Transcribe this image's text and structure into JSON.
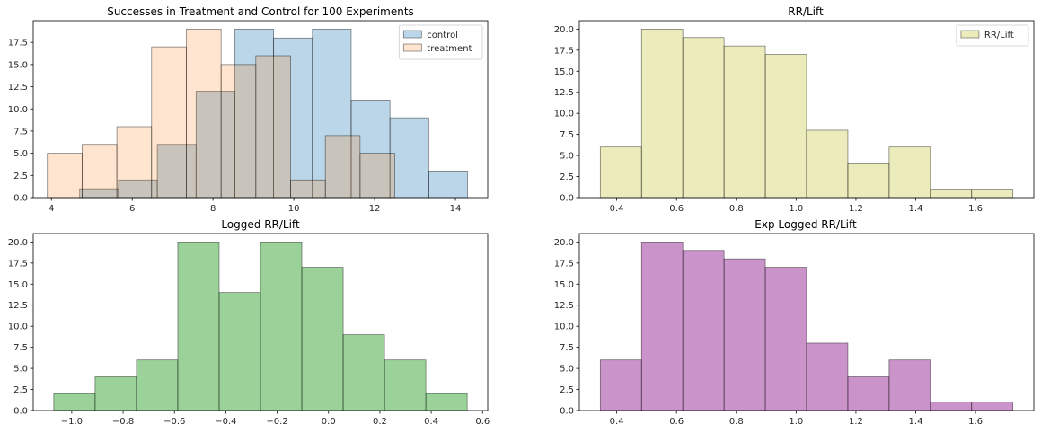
{
  "chart_data": [
    {
      "type": "bar",
      "title": "Successes in Treatment and Control for 100 Experiments",
      "xlim": [
        3.55,
        14.8
      ],
      "ylim": [
        0,
        19.95
      ],
      "xticks": [
        4,
        6,
        8,
        10,
        12,
        14
      ],
      "xtick_labels": [
        "4",
        "6",
        "8",
        "10",
        "12",
        "14"
      ],
      "yticks": [
        0,
        2.5,
        5,
        7.5,
        10,
        12.5,
        15,
        17.5
      ],
      "ytick_labels": [
        "0.0",
        "2.5",
        "5.0",
        "7.5",
        "10.0",
        "12.5",
        "15.0",
        "17.5"
      ],
      "legend_position": "top-right",
      "series": [
        {
          "name": "control",
          "color": "#1f77b4",
          "alpha": 0.3,
          "edges": [
            4.7,
            5.66,
            6.62,
            7.58,
            8.54,
            9.5,
            10.46,
            11.42,
            12.38,
            13.34,
            14.3
          ],
          "values": [
            1,
            2,
            6,
            12,
            19,
            18,
            19,
            11,
            9,
            3
          ]
        },
        {
          "name": "treatment",
          "color": "#ff7f0e",
          "alpha": 0.2,
          "edges": [
            3.9,
            4.76,
            5.62,
            6.48,
            7.34,
            8.2,
            9.06,
            9.92,
            10.78,
            11.64,
            12.5
          ],
          "values": [
            5,
            6,
            8,
            17,
            19,
            15,
            16,
            2,
            7,
            5
          ]
        }
      ]
    },
    {
      "type": "bar",
      "title": "RR/Lift",
      "xlim": [
        0.275,
        1.795
      ],
      "ylim": [
        0,
        21
      ],
      "xticks": [
        0.4,
        0.6,
        0.8,
        1.0,
        1.2,
        1.4,
        1.6
      ],
      "xtick_labels": [
        "0.4",
        "0.6",
        "0.8",
        "1.0",
        "1.2",
        "1.4",
        "1.6"
      ],
      "yticks": [
        0,
        2.5,
        5,
        7.5,
        10,
        12.5,
        15,
        17.5,
        20
      ],
      "ytick_labels": [
        "0.0",
        "2.5",
        "5.0",
        "7.5",
        "10.0",
        "12.5",
        "15.0",
        "17.5",
        "20.0"
      ],
      "legend_position": "top-right",
      "series": [
        {
          "name": "RR/Lift",
          "color": "#bcbd22",
          "alpha": 0.3,
          "edges": [
            0.345,
            0.483,
            0.621,
            0.759,
            0.897,
            1.035,
            1.173,
            1.311,
            1.449,
            1.587,
            1.725
          ],
          "values": [
            6,
            20,
            19,
            18,
            17,
            8,
            4,
            6,
            1,
            1
          ]
        }
      ]
    },
    {
      "type": "bar",
      "title": "Logged RR/Lift",
      "xlim": [
        -1.15,
        0.62
      ],
      "ylim": [
        0,
        21
      ],
      "xticks": [
        -1.0,
        -0.8,
        -0.6,
        -0.4,
        -0.2,
        0.0,
        0.2,
        0.4,
        0.6
      ],
      "xtick_labels": [
        "−1.0",
        "−0.8",
        "−0.6",
        "−0.4",
        "−0.2",
        "0.0",
        "0.2",
        "0.4",
        "0.6"
      ],
      "yticks": [
        0,
        2.5,
        5,
        7.5,
        10,
        12.5,
        15,
        17.5,
        20
      ],
      "ytick_labels": [
        "0.0",
        "2.5",
        "5.0",
        "7.5",
        "10.0",
        "12.5",
        "15.0",
        "17.5",
        "20.0"
      ],
      "series": [
        {
          "color": "#2ca02c",
          "alpha": 0.48,
          "edges": [
            -1.07,
            -0.909,
            -0.748,
            -0.587,
            -0.426,
            -0.265,
            -0.104,
            0.057,
            0.218,
            0.379,
            0.54
          ],
          "values": [
            2,
            4,
            6,
            20,
            14,
            20,
            17,
            9,
            6,
            2
          ]
        }
      ]
    },
    {
      "type": "bar",
      "title": "Exp Logged RR/Lift",
      "xlim": [
        0.275,
        1.795
      ],
      "ylim": [
        0,
        21
      ],
      "xticks": [
        0.4,
        0.6,
        0.8,
        1.0,
        1.2,
        1.4,
        1.6
      ],
      "xtick_labels": [
        "0.4",
        "0.6",
        "0.8",
        "1.0",
        "1.2",
        "1.4",
        "1.6"
      ],
      "yticks": [
        0,
        2.5,
        5,
        7.5,
        10,
        12.5,
        15,
        17.5,
        20
      ],
      "ytick_labels": [
        "0.0",
        "2.5",
        "5.0",
        "7.5",
        "10.0",
        "12.5",
        "15.0",
        "17.5",
        "20.0"
      ],
      "series": [
        {
          "color": "#800080",
          "alpha": 0.42,
          "edges": [
            0.345,
            0.483,
            0.621,
            0.759,
            0.897,
            1.035,
            1.173,
            1.311,
            1.449,
            1.587,
            1.725
          ],
          "values": [
            6,
            20,
            19,
            18,
            17,
            8,
            4,
            6,
            1,
            1
          ]
        }
      ]
    }
  ]
}
